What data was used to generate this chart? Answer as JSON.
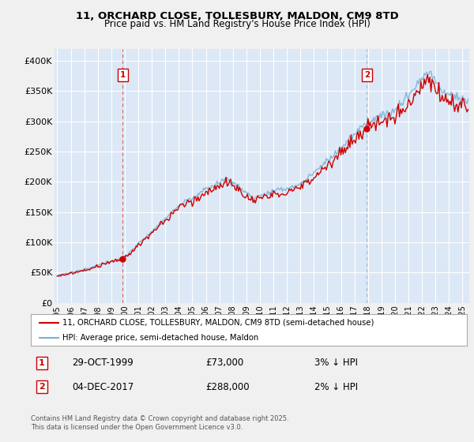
{
  "title_line1": "11, ORCHARD CLOSE, TOLLESBURY, MALDON, CM9 8TD",
  "title_line2": "Price paid vs. HM Land Registry's House Price Index (HPI)",
  "ylim": [
    0,
    420000
  ],
  "yticks": [
    0,
    50000,
    100000,
    150000,
    200000,
    250000,
    300000,
    350000,
    400000
  ],
  "ytick_labels": [
    "£0",
    "£50K",
    "£100K",
    "£150K",
    "£200K",
    "£250K",
    "£300K",
    "£350K",
    "£400K"
  ],
  "plot_bg_color": "#dce8f5",
  "grid_color": "#ffffff",
  "sale1_date": 1999.833,
  "sale1_price": 73000,
  "sale2_date": 2017.917,
  "sale2_price": 288000,
  "legend_label_red": "11, ORCHARD CLOSE, TOLLESBURY, MALDON, CM9 8TD (semi-detached house)",
  "legend_label_blue": "HPI: Average price, semi-detached house, Maldon",
  "annotation1_text1": "29-OCT-1999",
  "annotation1_text2": "£73,000",
  "annotation1_text3": "3% ↓ HPI",
  "annotation2_text1": "04-DEC-2017",
  "annotation2_text2": "£288,000",
  "annotation2_text3": "2% ↓ HPI",
  "footer_text": "Contains HM Land Registry data © Crown copyright and database right 2025.\nThis data is licensed under the Open Government Licence v3.0.",
  "red_color": "#cc0000",
  "blue_color": "#7ab0d4",
  "vline1_color": "#dd6666",
  "vline2_color": "#99bbdd",
  "fig_bg": "#f0f0f0"
}
